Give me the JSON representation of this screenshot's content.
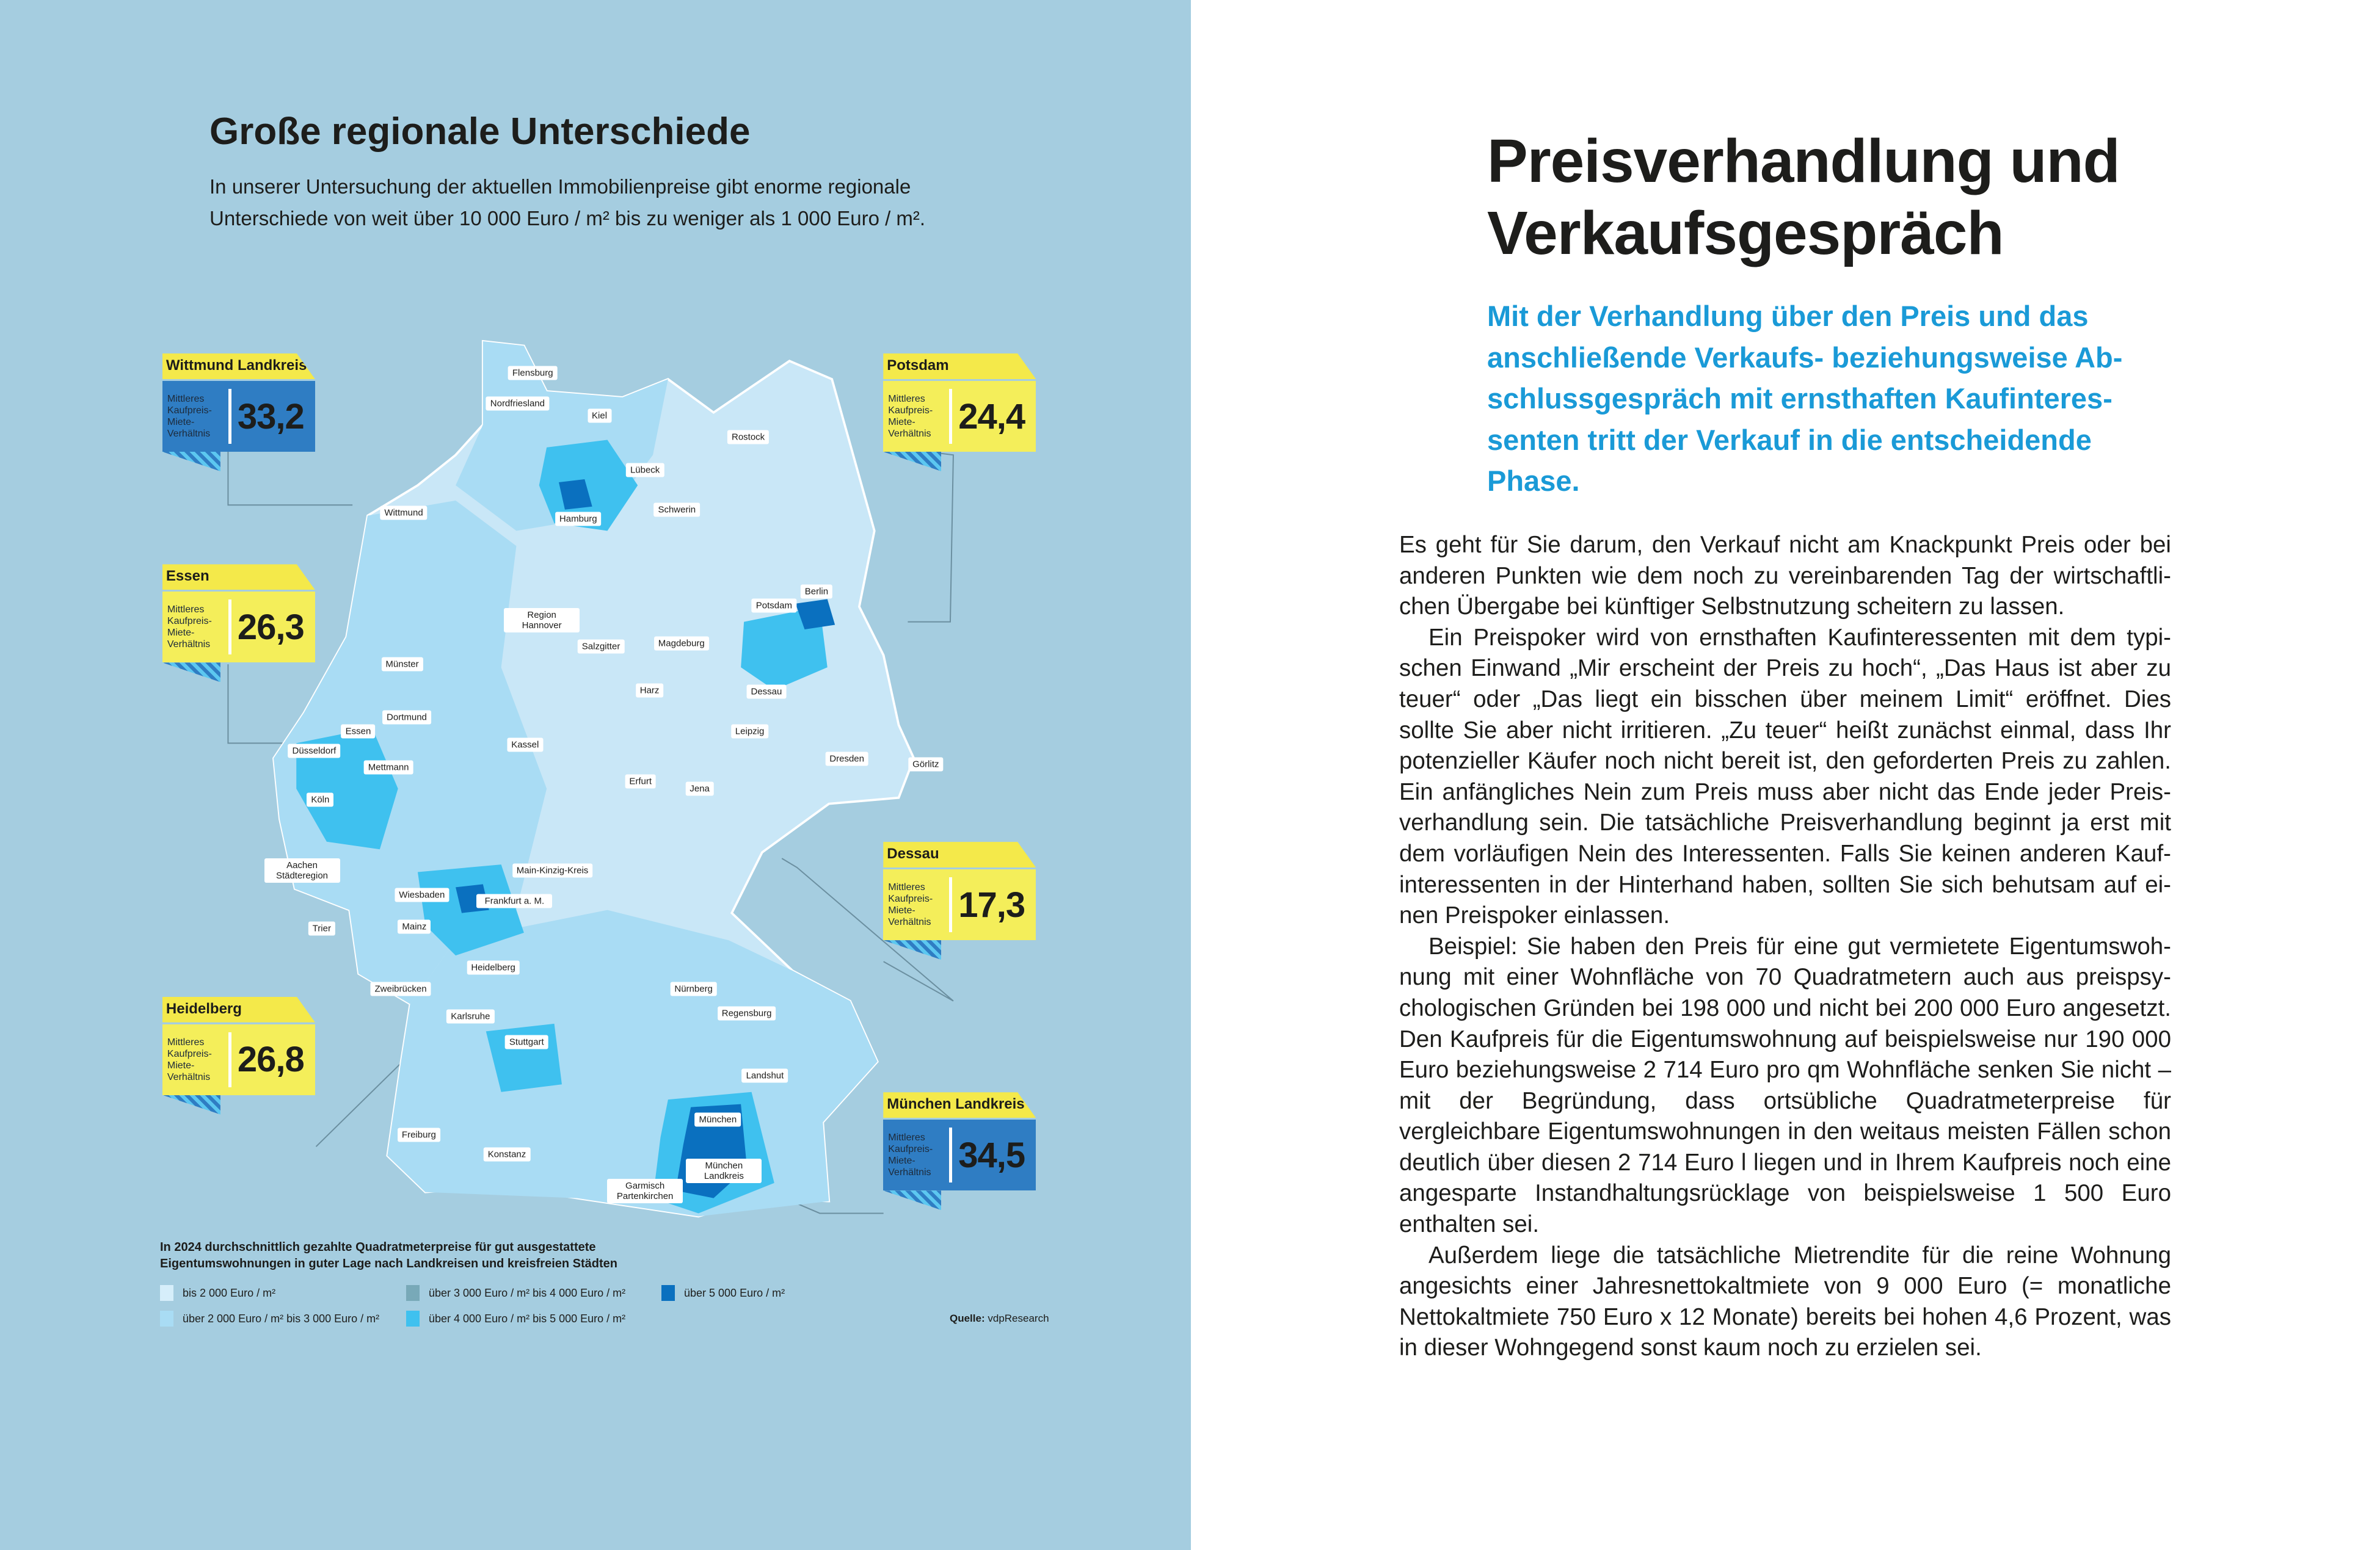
{
  "left_page": {
    "title": "Große regionale Unterschiede",
    "subtitle": "In unserer Untersuchung der aktuellen Immobilienpreise gibt enorme regionale Unterschiede von weit über 10 000 Euro / m² bis zu weniger als 1 000 Euro / m².",
    "callouts": [
      {
        "region": "Wittmund Landkreis",
        "description": "Mittleres Kaufpreis-Miete-Verhältnis",
        "value": "33,2",
        "style": "blue"
      },
      {
        "region": "Potsdam",
        "description": "Mittleres Kaufpreis-Miete-Verhältnis",
        "value": "24,4",
        "style": "yellow"
      },
      {
        "region": "Essen",
        "description": "Mittleres Kaufpreis-Miete-Verhältnis",
        "value": "26,3",
        "style": "yellow"
      },
      {
        "region": "Dessau",
        "description": "Mittleres Kaufpreis-Miete-Verhältnis",
        "value": "17,3",
        "style": "yellow"
      },
      {
        "region": "Heidelberg",
        "description": "Mittleres Kaufpreis-Miete-Verhältnis",
        "value": "26,8",
        "style": "yellow"
      },
      {
        "region": "München Landkreis",
        "description": "Mittleres Kaufpreis-Miete-Verhältnis",
        "value": "34,5",
        "style": "blue"
      }
    ],
    "cities": [
      "Flensburg",
      "Nordfriesland",
      "Kiel",
      "Rostock",
      "Lübeck",
      "Schwerin",
      "Hamburg",
      "Wittmund",
      "Berlin",
      "Potsdam",
      "Region Hannover",
      "Salzgitter",
      "Magdeburg",
      "Münster",
      "Dessau",
      "Harz",
      "Dortmund",
      "Essen",
      "Leipzig",
      "Kassel",
      "Düsseldorf",
      "Dresden",
      "Görlitz",
      "Mettmann",
      "Erfurt",
      "Jena",
      "Köln",
      "Aachen Städteregion",
      "Main-Kinzig-Kreis",
      "Wiesbaden",
      "Frankfurt a. M.",
      "Mainz",
      "Trier",
      "Heidelberg",
      "Nürnberg",
      "Zweibrücken",
      "Karlsruhe",
      "Regensburg",
      "Stuttgart",
      "Landshut",
      "München",
      "Freiburg",
      "Konstanz",
      "München Landkreis",
      "Garmisch Partenkirchen"
    ],
    "legend": {
      "title": "In 2024 durchschnittlich gezahlte Quadratmeterpreise für gut ausgestattete Eigentumswohnungen in guter Lage nach Landkreisen und kreisfreien Städten",
      "items": [
        {
          "label": "bis 2 000 Euro / m²",
          "color": "#d6eefa"
        },
        {
          "label": "über 2 000 Euro / m² bis 3 000 Euro / m²",
          "color": "#a9dcf4"
        },
        {
          "label": "über 3 000 Euro / m² bis 4 000 Euro / m²",
          "color": "#78a9b8"
        },
        {
          "label": "über 4 000 Euro / m² bis 5 000 Euro / m²",
          "color": "#3fc1ef"
        },
        {
          "label": "über 5 000 Euro / m²",
          "color": "#0a70bf"
        }
      ],
      "source_label": "Quelle:",
      "source": "vdpResearch"
    },
    "background_color": "#a5cde0"
  },
  "right_page": {
    "title_line1": "Preisverhandlung und",
    "title_line2": "Verkaufsgespräch",
    "lead": "Mit der Verhandlung über den Preis und das anschließende Verkaufs- beziehungsweise Ab­schlussgespräch mit ernsthaften Kaufinteres­senten tritt der Verkauf in die entscheidende Phase.",
    "paragraphs": [
      "Es geht für Sie darum, den Verkauf nicht am Knackpunkt Preis oder bei anderen Punkten wie dem noch zu vereinbarenden Tag der wirtschaftli­chen Übergabe bei künftiger Selbstnutzung scheitern zu lassen.",
      "Ein Preispoker wird von ernsthaften Kaufinteressenten mit dem typi­schen Einwand „Mir erscheint der Preis zu hoch“, „Das Haus ist aber zu teuer“ oder „Das liegt ein bisschen über meinem Limit“ eröffnet. Dies sollte Sie aber nicht irritieren. „Zu teuer“ heißt zunächst einmal, dass Ihr potenzieller Käufer noch nicht bereit ist, den geforderten Preis zu zahlen. Ein anfängliches Nein zum Preis muss aber nicht das Ende jeder Preis­verhandlung sein. Die tatsächliche Preisverhandlung beginnt ja erst mit dem vorläufigen Nein des Interessenten. Falls Sie keinen anderen Kauf­interessenten in der Hinterhand haben, sollten Sie sich behutsam auf ei­nen Preispoker einlassen.",
      "Beispiel: Sie haben den Preis für eine gut vermietete Eigentumswoh­nung mit einer Wohnfläche von 70 Quadratmetern auch aus preispsy­chologischen Gründen bei 198 000 und nicht bei 200 000 Euro ange­setzt. Den Kaufpreis für die Eigentumswohnung auf beispielsweise nur 190 000 Euro beziehungsweise 2 714 Euro pro qm Wohnfläche senken Sie nicht – mit der Begründung, dass ortsübliche Quadratmeterpreise für vergleichbare Eigentumswohnungen in den weitaus meisten Fällen schon deutlich über diesen 2 714 Euro l liegen und in Ihrem Kaufpreis noch eine angesparte Instandhaltungsrücklage von beispielsweise 1 500 Euro enthalten sei.",
      "Außerdem liege die tatsächliche Mietrendite für die reine Wohnung angesichts einer Jahresnettokaltmiete von 9 000 Euro (= monatliche Nettokaltmiete 750 Euro x 12 Monate) bereits bei hohen 4,6 Prozent, was in dieser Wohngegend sonst kaum noch zu erzielen sei."
    ],
    "lead_color": "#1a9ad7"
  }
}
